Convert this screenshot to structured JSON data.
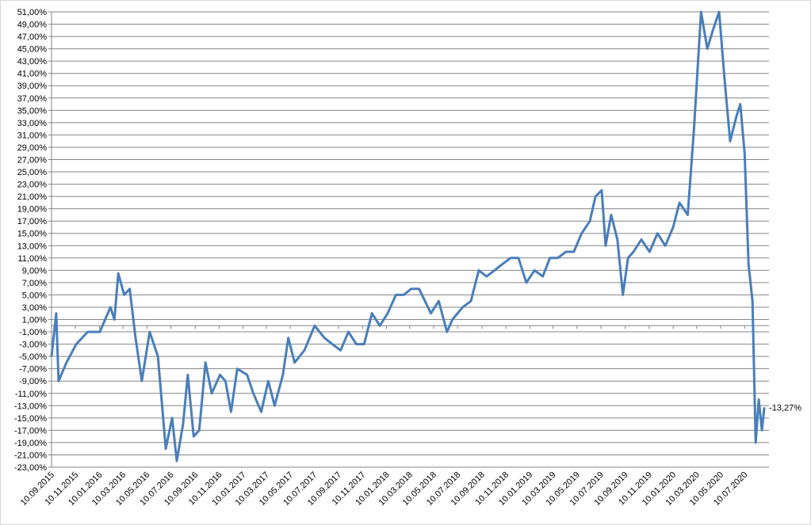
{
  "chart_data": {
    "type": "line",
    "x": [
      "10.09.2015",
      "22.09.2015",
      "28.09.2015",
      "18.10.2015",
      "12.11.2015",
      "11.12.2015",
      "11.01.2016",
      "07.02.2016",
      "17.02.2016",
      "27.02.2016",
      "13.03.2016",
      "27.03.2016",
      "11.04.2016",
      "27.04.2016",
      "17.05.2016",
      "07.06.2016",
      "27.06.2016",
      "13.07.2016",
      "25.07.2016",
      "10.08.2016",
      "22.08.2016",
      "06.09.2016",
      "20.09.2016",
      "06.10.2016",
      "22.10.2016",
      "12.11.2016",
      "26.11.2016",
      "10.12.2016",
      "26.12.2016",
      "20.01.2017",
      "05.02.2017",
      "25.02.2017",
      "15.03.2017",
      "31.03.2017",
      "21.04.2017",
      "05.05.2017",
      "21.05.2017",
      "15.06.2017",
      "11.07.2017",
      "05.08.2017",
      "25.08.2017",
      "15.09.2017",
      "05.10.2017",
      "25.10.2017",
      "14.11.2017",
      "04.12.2017",
      "24.12.2017",
      "13.01.2018",
      "03.02.2018",
      "23.02.2018",
      "14.03.2018",
      "03.04.2018",
      "03.05.2018",
      "23.05.2018",
      "13.06.2018",
      "27.06.2018",
      "23.07.2018",
      "13.08.2018",
      "02.09.2018",
      "22.09.2018",
      "12.10.2018",
      "01.11.2018",
      "22.11.2018",
      "12.12.2018",
      "01.01.2019",
      "22.01.2019",
      "12.02.2019",
      "02.03.2019",
      "22.03.2019",
      "12.04.2019",
      "02.05.2019",
      "22.05.2019",
      "12.06.2019",
      "26.06.2019",
      "12.07.2019",
      "22.07.2019",
      "05.08.2019",
      "21.08.2019",
      "04.09.2019",
      "17.09.2019",
      "01.10.2019",
      "21.10.2019",
      "11.11.2019",
      "01.12.2019",
      "21.12.2019",
      "10.01.2020",
      "26.01.2020",
      "16.02.2020",
      "03.03.2020",
      "21.03.2020",
      "06.04.2020",
      "20.04.2020",
      "06.05.2020",
      "20.05.2020",
      "03.06.2020",
      "19.06.2020",
      "29.06.2020",
      "10.07.2020",
      "20.07.2020",
      "30.07.2020",
      "07.08.2020",
      "15.08.2020",
      "23.08.2020",
      "29.08.2020"
    ],
    "series": [
      {
        "color": "#4a7ebb",
        "values": [
          -5,
          2,
          -9,
          -6,
          -3,
          -1,
          -1,
          3,
          1,
          8.5,
          5,
          6,
          -2,
          -9,
          -1,
          -5,
          -20,
          -15,
          -22,
          -16,
          -8,
          -18,
          -17,
          -6,
          -11,
          -8,
          -9,
          -14,
          -7,
          -8,
          -11,
          -14,
          -9,
          -13,
          -8,
          -2,
          -6,
          -4,
          0,
          -2,
          -3,
          -4,
          -1,
          -3,
          -3,
          2,
          0,
          2,
          5,
          5,
          6,
          6,
          2,
          4,
          -1,
          1,
          3,
          4,
          9,
          8,
          9,
          10,
          11,
          11,
          7,
          9,
          8,
          11,
          11,
          12,
          12,
          15,
          17,
          21,
          22,
          13,
          18,
          14,
          5,
          11,
          12,
          14,
          12,
          15,
          13,
          16,
          20,
          18,
          32,
          51,
          45,
          48,
          51,
          40,
          30,
          34,
          36,
          28,
          10,
          4,
          -19,
          -12,
          -17,
          -13.27
        ],
        "value_labels": [
          null,
          null,
          null,
          null,
          null,
          null,
          null,
          null,
          null,
          null,
          null,
          null,
          null,
          null,
          null,
          null,
          null,
          null,
          null,
          null,
          null,
          null,
          null,
          null,
          null,
          null,
          null,
          null,
          null,
          null,
          null,
          null,
          null,
          null,
          null,
          null,
          null,
          null,
          null,
          null,
          null,
          null,
          null,
          null,
          null,
          null,
          null,
          null,
          null,
          null,
          null,
          null,
          null,
          null,
          null,
          null,
          null,
          null,
          null,
          null,
          null,
          null,
          null,
          null,
          null,
          null,
          null,
          null,
          null,
          null,
          null,
          null,
          null,
          null,
          null,
          null,
          null,
          null,
          null,
          null,
          null,
          null,
          null,
          null,
          null,
          null,
          null,
          null,
          null,
          null,
          null,
          null,
          null,
          null,
          null,
          null,
          null,
          null,
          null,
          null,
          null,
          null,
          null,
          "-13,27%"
        ]
      }
    ],
    "xlim": [
      "10.09.2015",
      "10.09.2020"
    ],
    "xticks": [
      "10.09.2015",
      "10.11.2015",
      "10.01.2016",
      "10.03.2016",
      "10.05.2016",
      "10.07.2016",
      "10.09.2016",
      "10.11.2016",
      "10.01.2017",
      "10.03.2017",
      "10.05.2017",
      "10.07.2017",
      "10.09.2017",
      "10.11.2017",
      "10.01.2018",
      "10.03.2018",
      "10.05.2018",
      "10.07.2018",
      "10.09.2018",
      "10.11.2018",
      "10.01.2019",
      "10.03.2019",
      "10.05.2019",
      "10.07.2019",
      "10.09.2019",
      "10.11.2019",
      "10.01.2020",
      "10.03.2020",
      "10.05.2020",
      "10.07.2020"
    ],
    "ylim": [
      -23,
      51
    ],
    "yticks": [
      {
        "value": 51,
        "label": "51,00%"
      },
      {
        "value": 49,
        "label": "49,00%"
      },
      {
        "value": 47,
        "label": "47,00%"
      },
      {
        "value": 45,
        "label": "45,00%"
      },
      {
        "value": 43,
        "label": "43,00%"
      },
      {
        "value": 41,
        "label": "41,00%"
      },
      {
        "value": 39,
        "label": "39,00%"
      },
      {
        "value": 37,
        "label": "37,00%"
      },
      {
        "value": 35,
        "label": "35,00%"
      },
      {
        "value": 33,
        "label": "33,00%"
      },
      {
        "value": 31,
        "label": "31,00%"
      },
      {
        "value": 29,
        "label": "29,00%"
      },
      {
        "value": 27,
        "label": "27,00%"
      },
      {
        "value": 25,
        "label": "25,00%"
      },
      {
        "value": 23,
        "label": "23,00%"
      },
      {
        "value": 21,
        "label": "21,00%"
      },
      {
        "value": 19,
        "label": "19,00%"
      },
      {
        "value": 17,
        "label": "17,00%"
      },
      {
        "value": 15,
        "label": "15,00%"
      },
      {
        "value": 13,
        "label": "13,00%"
      },
      {
        "value": 11,
        "label": "11,00%"
      },
      {
        "value": 9,
        "label": "9,00%"
      },
      {
        "value": 7,
        "label": "7,00%"
      },
      {
        "value": 5,
        "label": "5,00%"
      },
      {
        "value": 3,
        "label": "3,00%"
      },
      {
        "value": 1,
        "label": "1,00%"
      },
      {
        "value": -1,
        "label": "-1,00%"
      },
      {
        "value": -3,
        "label": "-3,00%"
      },
      {
        "value": -5,
        "label": "-5,00%"
      },
      {
        "value": -7,
        "label": "-7,00%"
      },
      {
        "value": -9,
        "label": "-9,00%"
      },
      {
        "value": -11,
        "label": "-11,00%"
      },
      {
        "value": -13,
        "label": "-13,00%"
      },
      {
        "value": -15,
        "label": "-15,00%"
      },
      {
        "value": -17,
        "label": "-17,00%"
      },
      {
        "value": -19,
        "label": "-19,00%"
      },
      {
        "value": -21,
        "label": "-21,00%"
      },
      {
        "value": -23,
        "label": "-23,00%"
      }
    ],
    "grid": true
  }
}
